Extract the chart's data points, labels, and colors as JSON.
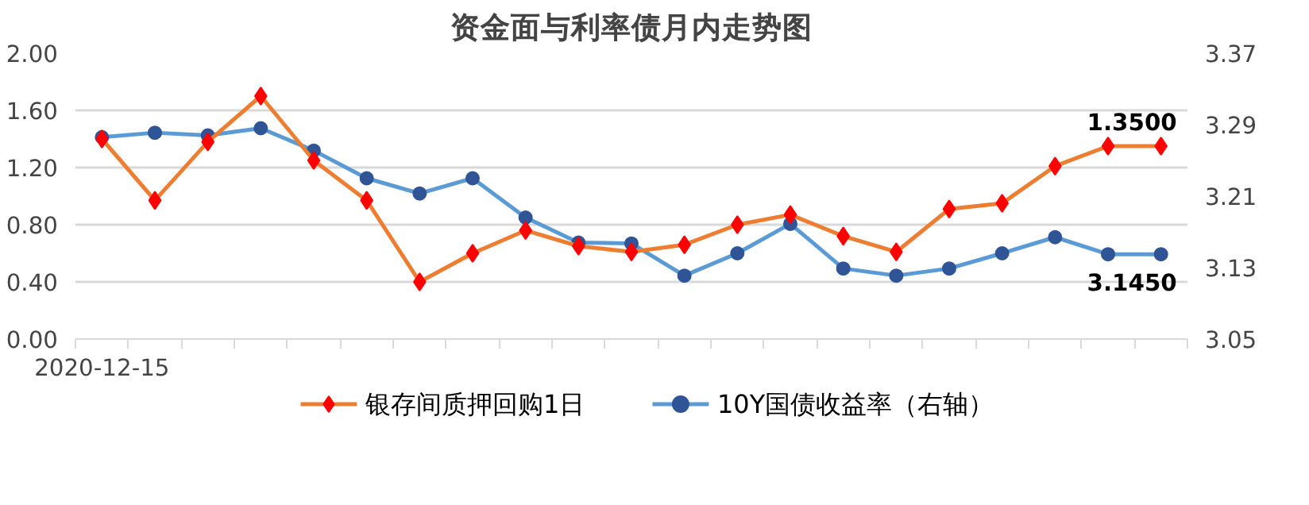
{
  "chart_data": {
    "type": "line",
    "title": "资金面与利率债月内走势图",
    "categories": [
      "2020-12-15",
      null,
      null,
      null,
      null,
      null,
      null,
      null,
      null,
      null,
      null,
      null,
      null,
      null,
      null,
      null,
      null,
      null,
      null,
      null,
      null
    ],
    "series": [
      {
        "name": "银存间质押回购1日",
        "color": "#ed7d31",
        "marker": "diamond",
        "colors": [
          "#ff0000",
          "#ff0000",
          "#ff0000",
          "#ff0000",
          "#ff0000",
          "#ff0000",
          "#ff0000",
          "#ff0000",
          "#ff0000",
          "#ff0000",
          "#ff0000",
          "#ff0000",
          "#ff0000",
          "#ff0000",
          "#ff0000",
          "#ff0000",
          "#ff0000",
          "#ff0000",
          "#ff0000",
          "#ff0000",
          "#ff0000"
        ],
        "values": [
          1.4,
          0.97,
          1.38,
          1.7,
          1.25,
          0.97,
          0.4,
          0.6,
          0.76,
          0.65,
          0.61,
          0.66,
          0.8,
          0.87,
          0.72,
          0.61,
          0.91,
          0.95,
          1.21,
          1.35,
          1.35
        ],
        "value_labels": [
          null,
          null,
          null,
          null,
          null,
          null,
          null,
          null,
          null,
          null,
          null,
          null,
          null,
          null,
          null,
          null,
          null,
          null,
          null,
          null,
          "1.3500"
        ]
      },
      {
        "name": "10Y国债收益率（右轴）",
        "color": "#5b9bd5",
        "marker": "circle",
        "axis": "y2",
        "colors": [
          "#2f5597",
          "#2f5597",
          "#2f5597",
          "#2f5597",
          "#2f5597",
          "#2f5597",
          "#2f5597",
          "#2f5597",
          "#2f5597",
          "#2f5597",
          "#2f5597",
          "#2f5597",
          "#2f5597",
          "#2f5597",
          "#2f5597",
          "#2f5597",
          "#2f5597",
          "#2f5597",
          "#2f5597",
          "#2f5597",
          "#2f5597"
        ],
        "values": [
          3.276,
          3.281,
          3.278,
          3.286,
          3.261,
          3.23,
          3.213,
          3.23,
          3.186,
          3.158,
          3.157,
          3.121,
          3.146,
          3.179,
          3.129,
          3.121,
          3.129,
          3.146,
          3.164,
          3.145,
          3.145
        ],
        "value_labels": [
          null,
          null,
          null,
          null,
          null,
          null,
          null,
          null,
          null,
          null,
          null,
          null,
          null,
          null,
          null,
          null,
          null,
          null,
          null,
          null,
          "3.1450"
        ]
      }
    ],
    "ylim": [
      0,
      2
    ],
    "yticks": [
      {
        "value": 0,
        "label": "0.00"
      },
      {
        "value": 0.4,
        "label": "0.40"
      },
      {
        "value": 0.8,
        "label": "0.80"
      },
      {
        "value": 1.2,
        "label": "1.20"
      },
      {
        "value": 1.6,
        "label": "1.60"
      },
      {
        "value": 2,
        "label": "2.00"
      }
    ],
    "y2lim": [
      3.05,
      3.37
    ],
    "y2ticks": [
      3.05,
      3.13,
      3.21,
      3.29,
      3.37
    ],
    "grid": "y",
    "legend": "bottom",
    "line_style": "solid"
  }
}
